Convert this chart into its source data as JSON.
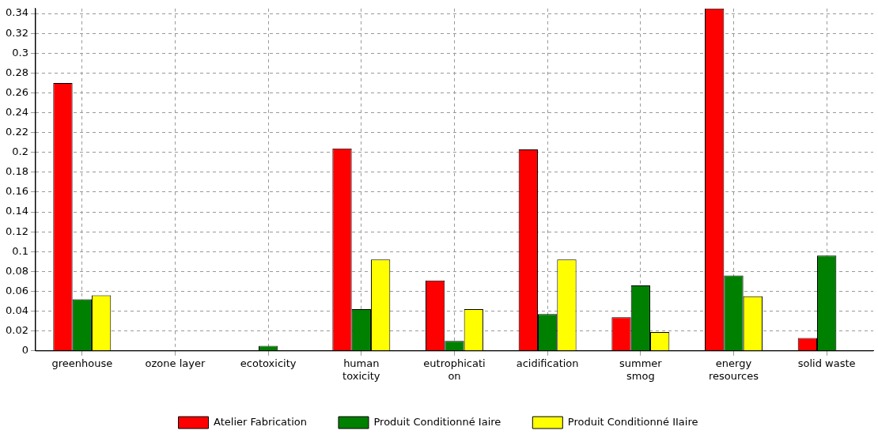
{
  "chart_data": {
    "type": "bar",
    "categories": [
      "greenhouse",
      "ozone layer",
      "ecotoxicity",
      "human\ntoxicity",
      "eutrophicati\non",
      "acidification",
      "summer\nsmog",
      "energy\nresources",
      "solid waste"
    ],
    "series": [
      {
        "name": "Atelier Fabrication",
        "color": "#ff0000",
        "values": [
          0.27,
          0,
          0,
          0.204,
          0.071,
          0.203,
          0.034,
          0.345,
          0.013
        ]
      },
      {
        "name": "Produit Conditionné Iaire",
        "color": "#008000",
        "values": [
          0.052,
          0,
          0.005,
          0.042,
          0.01,
          0.037,
          0.066,
          0.076,
          0.096
        ]
      },
      {
        "name": "Produit Conditionné IIaire",
        "color": "#ffff00",
        "values": [
          0.056,
          0,
          0,
          0.092,
          0.042,
          0.092,
          0.019,
          0.055,
          0
        ]
      }
    ],
    "ylim": [
      0,
      0.345
    ],
    "yticks": [
      0,
      0.02,
      0.04,
      0.06,
      0.08,
      0.1,
      0.12,
      0.14,
      0.16,
      0.18,
      0.2,
      0.22,
      0.24,
      0.26,
      0.28,
      0.3,
      0.32,
      0.34
    ],
    "grid": true,
    "legend": "bottom"
  }
}
